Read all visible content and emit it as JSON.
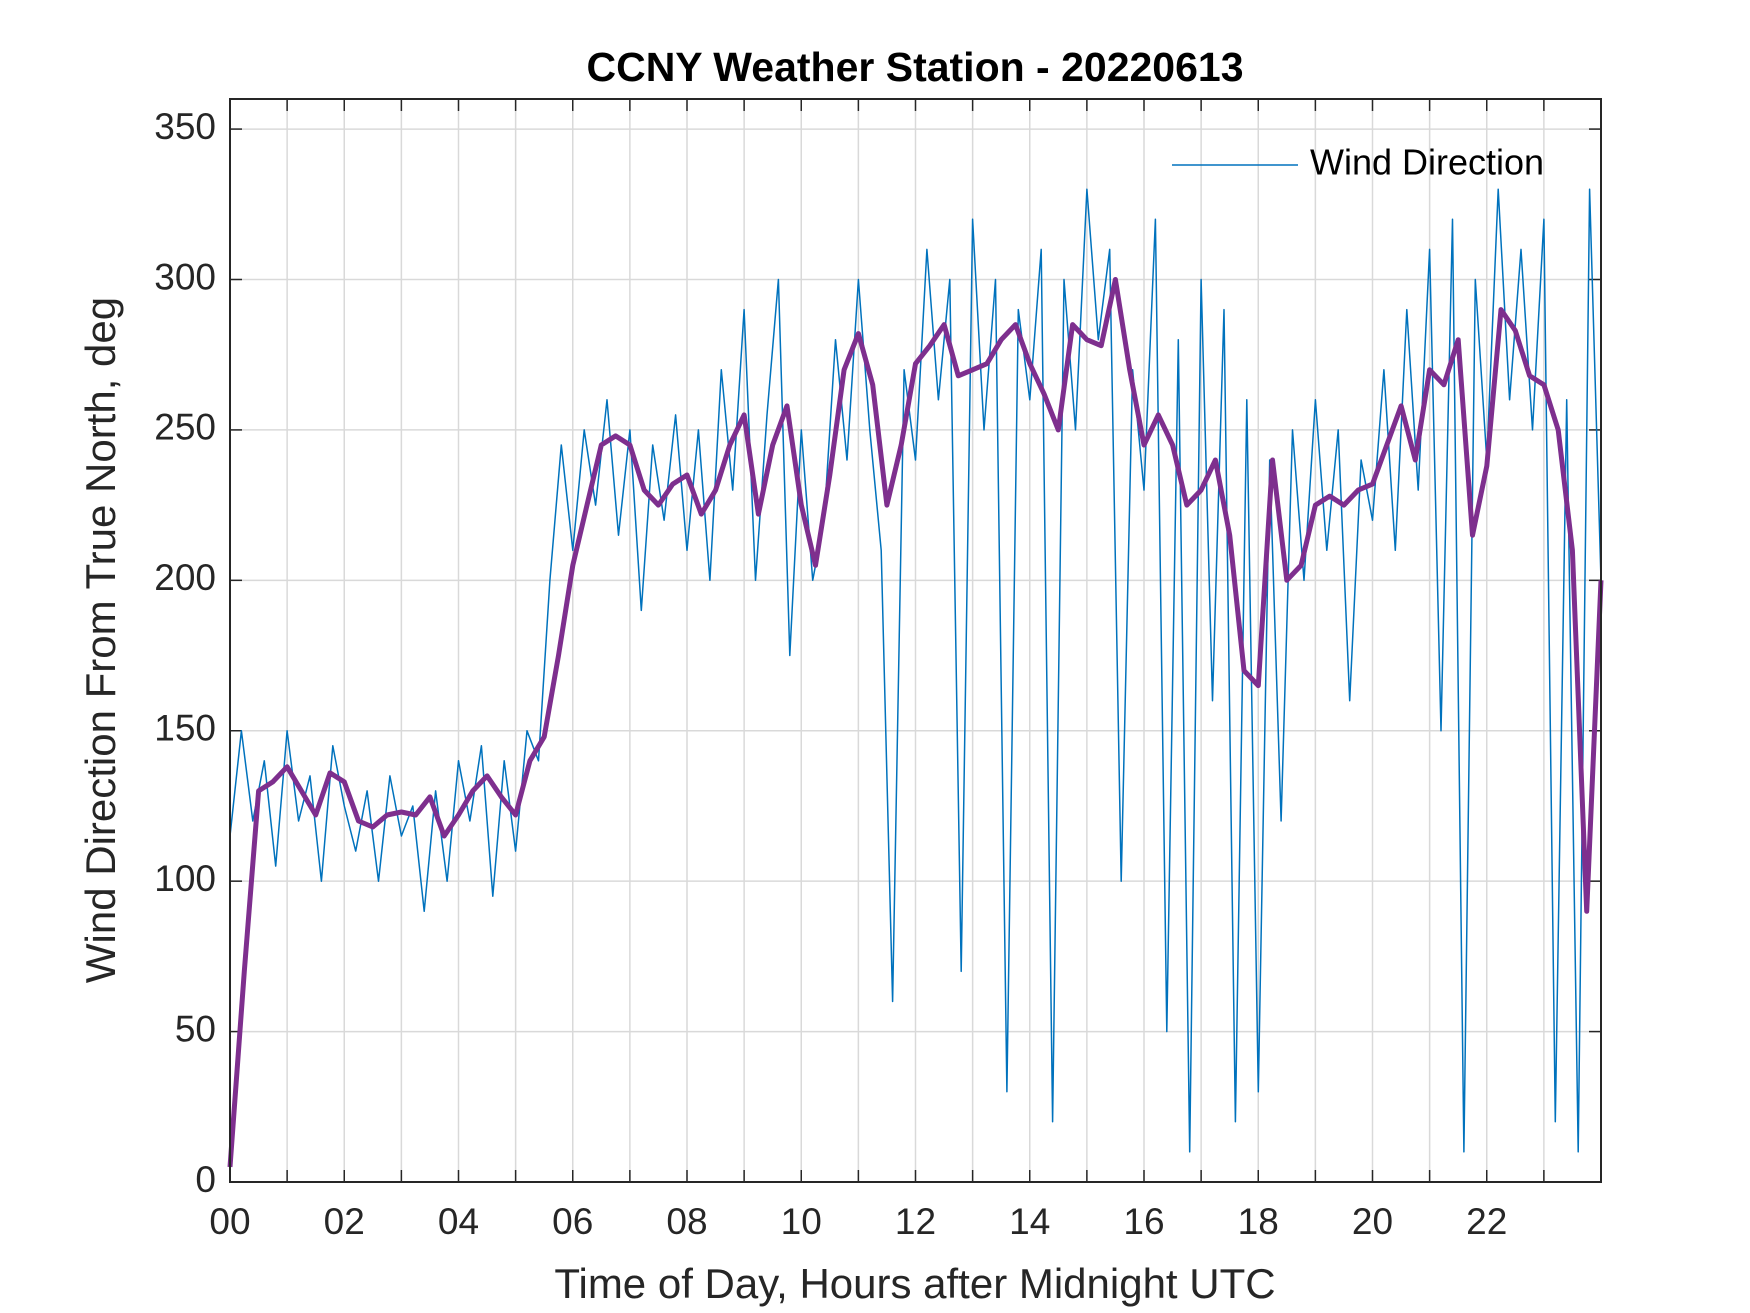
{
  "chart_data": {
    "type": "line",
    "title": "CCNY Weather Station - 20220613",
    "xlabel": "Time of Day, Hours after Midnight UTC",
    "ylabel": "Wind Direction From True North, deg",
    "xlim": [
      0,
      24
    ],
    "ylim": [
      0,
      360
    ],
    "xticks": [
      {
        "value": 0,
        "label": "00"
      },
      {
        "value": 2,
        "label": "02"
      },
      {
        "value": 4,
        "label": "04"
      },
      {
        "value": 6,
        "label": "06"
      },
      {
        "value": 8,
        "label": "08"
      },
      10,
      12,
      14,
      16,
      18,
      20,
      22
    ],
    "xminorticks": [
      1,
      3,
      5,
      7,
      9,
      11,
      13,
      15,
      17,
      19,
      21,
      23
    ],
    "yticks": [
      0,
      50,
      100,
      150,
      200,
      250,
      300,
      350
    ],
    "grid": true,
    "legend": "northeast",
    "series": [
      {
        "name": "Wind Direction",
        "color": "#0072bd",
        "width": 1.5,
        "x": [
          0,
          0.2,
          0.4,
          0.6,
          0.8,
          1,
          1.2,
          1.4,
          1.6,
          1.8,
          2,
          2.2,
          2.4,
          2.6,
          2.8,
          3,
          3.2,
          3.4,
          3.6,
          3.8,
          4,
          4.2,
          4.4,
          4.6,
          4.8,
          5,
          5.2,
          5.4,
          5.6,
          5.8,
          6,
          6.2,
          6.4,
          6.6,
          6.8,
          7,
          7.2,
          7.4,
          7.6,
          7.8,
          8,
          8.2,
          8.4,
          8.6,
          8.8,
          9,
          9.2,
          9.4,
          9.6,
          9.8,
          10,
          10.2,
          10.4,
          10.6,
          10.8,
          11,
          11.2,
          11.4,
          11.6,
          11.8,
          12,
          12.2,
          12.4,
          12.6,
          12.8,
          13,
          13.2,
          13.4,
          13.6,
          13.8,
          14,
          14.2,
          14.4,
          14.6,
          14.8,
          15,
          15.2,
          15.4,
          15.6,
          15.8,
          16,
          16.2,
          16.4,
          16.6,
          16.8,
          17,
          17.2,
          17.4,
          17.6,
          17.8,
          18,
          18.2,
          18.4,
          18.6,
          18.8,
          19,
          19.2,
          19.4,
          19.6,
          19.8,
          20,
          20.2,
          20.4,
          20.6,
          20.8,
          21,
          21.2,
          21.4,
          21.6,
          21.8,
          22,
          22.2,
          22.4,
          22.6,
          22.8,
          23,
          23.2,
          23.4,
          23.6,
          23.8,
          24
        ],
        "values": [
          115,
          150,
          120,
          140,
          105,
          150,
          120,
          135,
          100,
          145,
          125,
          110,
          130,
          100,
          135,
          115,
          125,
          90,
          130,
          100,
          140,
          120,
          145,
          95,
          140,
          110,
          150,
          140,
          200,
          245,
          210,
          250,
          225,
          260,
          215,
          250,
          190,
          245,
          220,
          255,
          210,
          250,
          200,
          270,
          230,
          290,
          200,
          255,
          300,
          175,
          250,
          200,
          220,
          280,
          240,
          300,
          250,
          210,
          60,
          270,
          240,
          310,
          260,
          300,
          70,
          320,
          250,
          300,
          30,
          290,
          260,
          310,
          20,
          300,
          250,
          330,
          280,
          310,
          100,
          270,
          230,
          320,
          50,
          280,
          10,
          300,
          160,
          290,
          20,
          260,
          30,
          240,
          120,
          250,
          200,
          260,
          210,
          250,
          160,
          240,
          220,
          270,
          210,
          290,
          230,
          310,
          150,
          320,
          10,
          300,
          240,
          330,
          260,
          310,
          250,
          320,
          20,
          260,
          10,
          330,
          200
        ]
      },
      {
        "color": "#7e2f8e",
        "width": 5,
        "x": [
          0,
          0.25,
          0.5,
          0.75,
          1,
          1.25,
          1.5,
          1.75,
          2,
          2.25,
          2.5,
          2.75,
          3,
          3.25,
          3.5,
          3.75,
          4,
          4.25,
          4.5,
          4.75,
          5,
          5.25,
          5.5,
          5.75,
          6,
          6.25,
          6.5,
          6.75,
          7,
          7.25,
          7.5,
          7.75,
          8,
          8.25,
          8.5,
          8.75,
          9,
          9.25,
          9.5,
          9.75,
          10,
          10.25,
          10.5,
          10.75,
          11,
          11.25,
          11.5,
          11.75,
          12,
          12.25,
          12.5,
          12.75,
          13,
          13.25,
          13.5,
          13.75,
          14,
          14.25,
          14.5,
          14.75,
          15,
          15.25,
          15.5,
          15.75,
          16,
          16.25,
          16.5,
          16.75,
          17,
          17.25,
          17.5,
          17.75,
          18,
          18.25,
          18.5,
          18.75,
          19,
          19.25,
          19.5,
          19.75,
          20,
          20.25,
          20.5,
          20.75,
          21,
          21.25,
          21.5,
          21.75,
          22,
          22.25,
          22.5,
          22.75,
          23,
          23.25,
          23.5,
          23.75,
          24
        ],
        "values": [
          5,
          70,
          130,
          133,
          138,
          130,
          122,
          136,
          133,
          120,
          118,
          122,
          123,
          122,
          128,
          115,
          122,
          130,
          135,
          128,
          122,
          140,
          148,
          175,
          205,
          225,
          245,
          248,
          245,
          230,
          225,
          232,
          235,
          222,
          230,
          245,
          255,
          222,
          245,
          258,
          225,
          205,
          235,
          270,
          282,
          265,
          225,
          245,
          272,
          278,
          285,
          268,
          270,
          272,
          280,
          285,
          272,
          262,
          250,
          285,
          280,
          278,
          300,
          270,
          245,
          255,
          245,
          225,
          230,
          240,
          215,
          170,
          165,
          240,
          200,
          205,
          225,
          228,
          225,
          230,
          232,
          245,
          258,
          240,
          270,
          265,
          280,
          215,
          238,
          290,
          283,
          268,
          265,
          250,
          210,
          90,
          200
        ]
      }
    ]
  }
}
